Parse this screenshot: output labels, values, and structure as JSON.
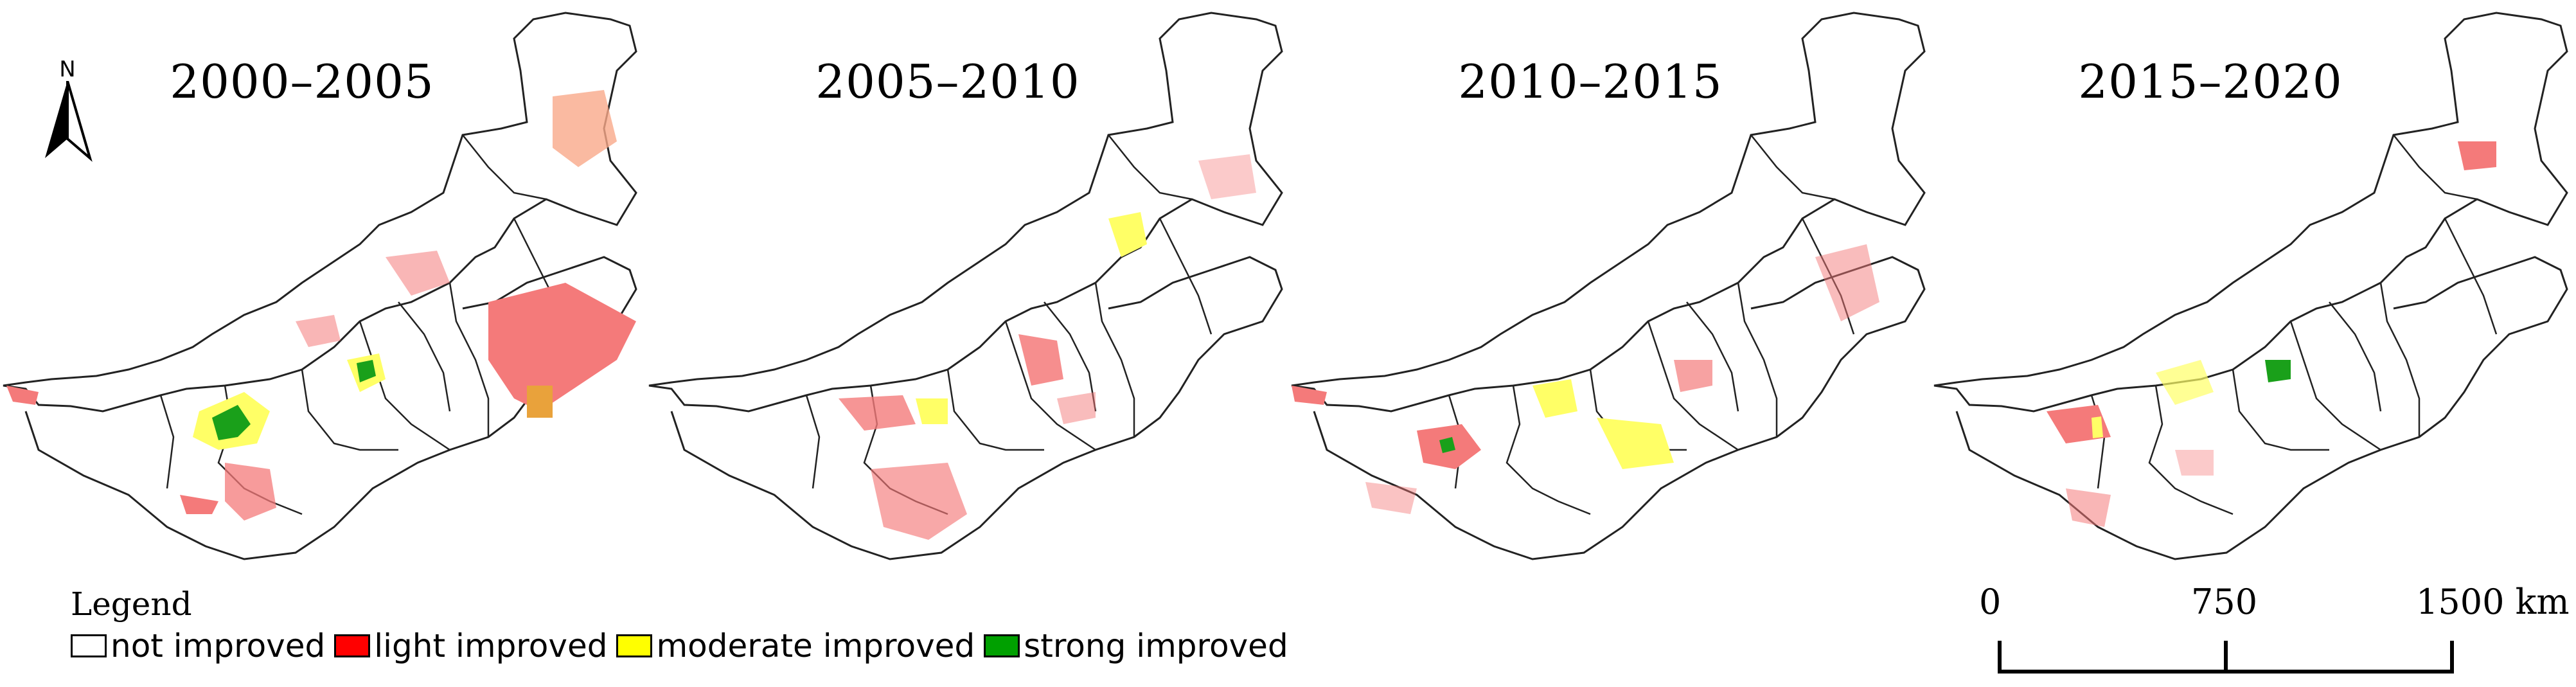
{
  "map": {
    "panels": [
      {
        "title": "2000–2005"
      },
      {
        "title": "2005–2010"
      },
      {
        "title": "2010–2015"
      },
      {
        "title": "2015–2020"
      }
    ],
    "north_label": "N",
    "legend": {
      "title": "Legend",
      "items": [
        {
          "label": "not improved",
          "color": "#ffffff"
        },
        {
          "label": "light improved",
          "color": "#ff0000"
        },
        {
          "label": "moderate improved",
          "color": "#ffff00"
        },
        {
          "label": "strong improved",
          "color": "#00a000"
        }
      ]
    },
    "scale_bar": {
      "ticks": [
        "0",
        "750",
        "1500 km"
      ]
    }
  },
  "colors": {
    "not_improved": "#ffffff",
    "light_improved": "#f47a7a",
    "moderate_improved": "#ffff66",
    "strong_improved": "#1aa01a",
    "boundary": "#222222"
  }
}
